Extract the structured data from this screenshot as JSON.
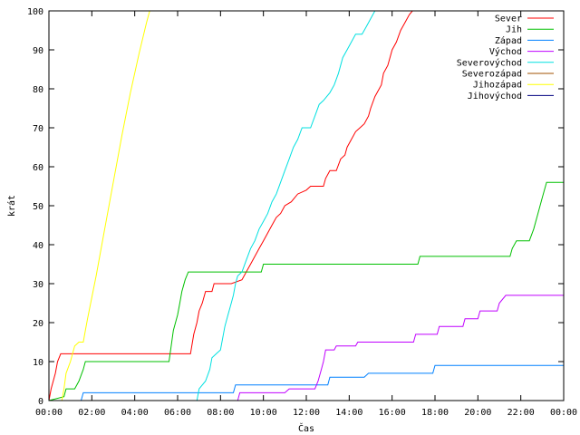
{
  "chart_data": {
    "type": "line",
    "title": "",
    "xlabel": "Čas",
    "ylabel": "krát",
    "xlim": [
      0,
      24
    ],
    "ylim": [
      0,
      100
    ],
    "x_ticks": [
      {
        "value": 0,
        "label": "00:00"
      },
      {
        "value": 2,
        "label": "02:00"
      },
      {
        "value": 4,
        "label": "04:00"
      },
      {
        "value": 6,
        "label": "06:00"
      },
      {
        "value": 8,
        "label": "08:00"
      },
      {
        "value": 10,
        "label": "10:00"
      },
      {
        "value": 12,
        "label": "12:00"
      },
      {
        "value": 14,
        "label": "14:00"
      },
      {
        "value": 16,
        "label": "16:00"
      },
      {
        "value": 18,
        "label": "18:00"
      },
      {
        "value": 20,
        "label": "20:00"
      },
      {
        "value": 22,
        "label": "22:00"
      },
      {
        "value": 24,
        "label": "00:00"
      }
    ],
    "y_ticks": [
      {
        "value": 0,
        "label": "0"
      },
      {
        "value": 10,
        "label": "10"
      },
      {
        "value": 20,
        "label": "20"
      },
      {
        "value": 30,
        "label": "30"
      },
      {
        "value": 40,
        "label": "40"
      },
      {
        "value": 50,
        "label": "50"
      },
      {
        "value": 60,
        "label": "60"
      },
      {
        "value": 70,
        "label": "70"
      },
      {
        "value": 80,
        "label": "80"
      },
      {
        "value": 90,
        "label": "90"
      },
      {
        "value": 100,
        "label": "100"
      }
    ],
    "legend_position": "top-right",
    "grid": false,
    "series": [
      {
        "name": "Sever",
        "color": "#ff0000",
        "points": [
          [
            0,
            0
          ],
          [
            0.1,
            3
          ],
          [
            0.3,
            7
          ],
          [
            0.4,
            10
          ],
          [
            0.55,
            12
          ],
          [
            6.6,
            12
          ],
          [
            6.75,
            17
          ],
          [
            6.9,
            20
          ],
          [
            7.0,
            23
          ],
          [
            7.15,
            25
          ],
          [
            7.3,
            28
          ],
          [
            7.6,
            28
          ],
          [
            7.7,
            30
          ],
          [
            8.5,
            30
          ],
          [
            9.0,
            31
          ],
          [
            9.2,
            33
          ],
          [
            9.4,
            35
          ],
          [
            9.6,
            37
          ],
          [
            9.8,
            39
          ],
          [
            10.0,
            41
          ],
          [
            10.2,
            43
          ],
          [
            10.4,
            45
          ],
          [
            10.6,
            47
          ],
          [
            10.8,
            48
          ],
          [
            11.0,
            50
          ],
          [
            11.3,
            51
          ],
          [
            11.6,
            53
          ],
          [
            12.0,
            54
          ],
          [
            12.2,
            55
          ],
          [
            12.8,
            55
          ],
          [
            12.9,
            57
          ],
          [
            13.1,
            59
          ],
          [
            13.4,
            59
          ],
          [
            13.6,
            62
          ],
          [
            13.8,
            63
          ],
          [
            13.9,
            65
          ],
          [
            14.1,
            67
          ],
          [
            14.3,
            69
          ],
          [
            14.5,
            70
          ],
          [
            14.7,
            71
          ],
          [
            14.9,
            73
          ],
          [
            15.0,
            75
          ],
          [
            15.2,
            78
          ],
          [
            15.5,
            81
          ],
          [
            15.6,
            84
          ],
          [
            15.8,
            86
          ],
          [
            15.9,
            88
          ],
          [
            16.0,
            90
          ],
          [
            16.2,
            92
          ],
          [
            16.4,
            95
          ],
          [
            16.6,
            97
          ],
          [
            16.8,
            99
          ],
          [
            16.95,
            100
          ]
        ]
      },
      {
        "name": "Jih",
        "color": "#00c000",
        "points": [
          [
            0,
            0
          ],
          [
            0.7,
            1
          ],
          [
            0.8,
            3
          ],
          [
            1.2,
            3
          ],
          [
            1.4,
            5
          ],
          [
            1.6,
            8
          ],
          [
            1.7,
            10
          ],
          [
            5.6,
            10
          ],
          [
            5.7,
            14
          ],
          [
            5.8,
            18
          ],
          [
            6.0,
            22
          ],
          [
            6.1,
            25
          ],
          [
            6.2,
            28
          ],
          [
            6.35,
            31
          ],
          [
            6.5,
            33
          ],
          [
            9.9,
            33
          ],
          [
            10.0,
            35
          ],
          [
            17.2,
            35
          ],
          [
            17.3,
            37
          ],
          [
            21.5,
            37
          ],
          [
            21.6,
            39
          ],
          [
            21.8,
            41
          ],
          [
            22.4,
            41
          ],
          [
            22.6,
            44
          ],
          [
            22.8,
            48
          ],
          [
            23.0,
            52
          ],
          [
            23.2,
            56
          ],
          [
            24,
            56
          ]
        ]
      },
      {
        "name": "Západ",
        "color": "#0080ff",
        "points": [
          [
            0,
            0
          ],
          [
            1.5,
            0
          ],
          [
            1.6,
            2
          ],
          [
            8.6,
            2
          ],
          [
            8.7,
            4
          ],
          [
            13.0,
            4
          ],
          [
            13.1,
            6
          ],
          [
            14.7,
            6
          ],
          [
            14.9,
            7
          ],
          [
            17.9,
            7
          ],
          [
            18.0,
            9
          ],
          [
            24,
            9
          ]
        ]
      },
      {
        "name": "Východ",
        "color": "#c000ff",
        "points": [
          [
            0,
            0
          ],
          [
            8.8,
            0
          ],
          [
            8.9,
            2
          ],
          [
            11.0,
            2
          ],
          [
            11.2,
            3
          ],
          [
            12.4,
            3
          ],
          [
            12.55,
            5
          ],
          [
            12.7,
            8
          ],
          [
            12.8,
            10
          ],
          [
            12.9,
            13
          ],
          [
            13.3,
            13
          ],
          [
            13.4,
            14
          ],
          [
            14.3,
            14
          ],
          [
            14.4,
            15
          ],
          [
            17.0,
            15
          ],
          [
            17.1,
            17
          ],
          [
            18.1,
            17
          ],
          [
            18.2,
            19
          ],
          [
            19.3,
            19
          ],
          [
            19.4,
            21
          ],
          [
            20.0,
            21
          ],
          [
            20.1,
            23
          ],
          [
            20.9,
            23
          ],
          [
            21.0,
            25
          ],
          [
            21.3,
            27
          ],
          [
            24,
            27
          ]
        ]
      },
      {
        "name": "Severovýchod",
        "color": "#00e0e0",
        "points": [
          [
            0,
            0
          ],
          [
            6.9,
            0
          ],
          [
            7.0,
            3
          ],
          [
            7.3,
            5
          ],
          [
            7.5,
            8
          ],
          [
            7.6,
            11
          ],
          [
            7.8,
            12
          ],
          [
            8.0,
            13
          ],
          [
            8.1,
            16
          ],
          [
            8.2,
            19
          ],
          [
            8.35,
            22
          ],
          [
            8.5,
            25
          ],
          [
            8.6,
            27
          ],
          [
            8.7,
            30
          ],
          [
            8.8,
            32
          ],
          [
            9.0,
            33
          ],
          [
            9.2,
            36
          ],
          [
            9.4,
            39
          ],
          [
            9.6,
            41
          ],
          [
            9.8,
            44
          ],
          [
            10.0,
            46
          ],
          [
            10.2,
            48
          ],
          [
            10.4,
            51
          ],
          [
            10.6,
            53
          ],
          [
            10.8,
            56
          ],
          [
            11.0,
            59
          ],
          [
            11.2,
            62
          ],
          [
            11.4,
            65
          ],
          [
            11.6,
            67
          ],
          [
            11.8,
            70
          ],
          [
            12.2,
            70
          ],
          [
            12.4,
            73
          ],
          [
            12.6,
            76
          ],
          [
            12.8,
            77
          ],
          [
            13.1,
            79
          ],
          [
            13.3,
            81
          ],
          [
            13.5,
            84
          ],
          [
            13.7,
            88
          ],
          [
            13.9,
            90
          ],
          [
            14.1,
            92
          ],
          [
            14.3,
            94
          ],
          [
            14.6,
            94
          ],
          [
            14.8,
            96
          ],
          [
            15.0,
            98
          ],
          [
            15.2,
            100
          ]
        ]
      },
      {
        "name": "Severozápad",
        "color": "#a05000",
        "points": []
      },
      {
        "name": "Jihozápad",
        "color": "#ffff00",
        "points": [
          [
            0,
            0
          ],
          [
            0.6,
            0
          ],
          [
            0.7,
            3
          ],
          [
            0.8,
            7
          ],
          [
            1.0,
            10
          ],
          [
            1.2,
            14
          ],
          [
            1.4,
            15
          ],
          [
            1.6,
            15
          ],
          [
            1.7,
            18
          ],
          [
            1.8,
            21
          ],
          [
            2.2,
            32
          ],
          [
            2.6,
            44
          ],
          [
            3.0,
            56
          ],
          [
            3.4,
            68
          ],
          [
            3.8,
            79
          ],
          [
            4.2,
            89
          ],
          [
            4.55,
            97
          ],
          [
            4.7,
            100
          ]
        ]
      },
      {
        "name": "Jihovýchod",
        "color": "#000080",
        "points": []
      }
    ]
  }
}
